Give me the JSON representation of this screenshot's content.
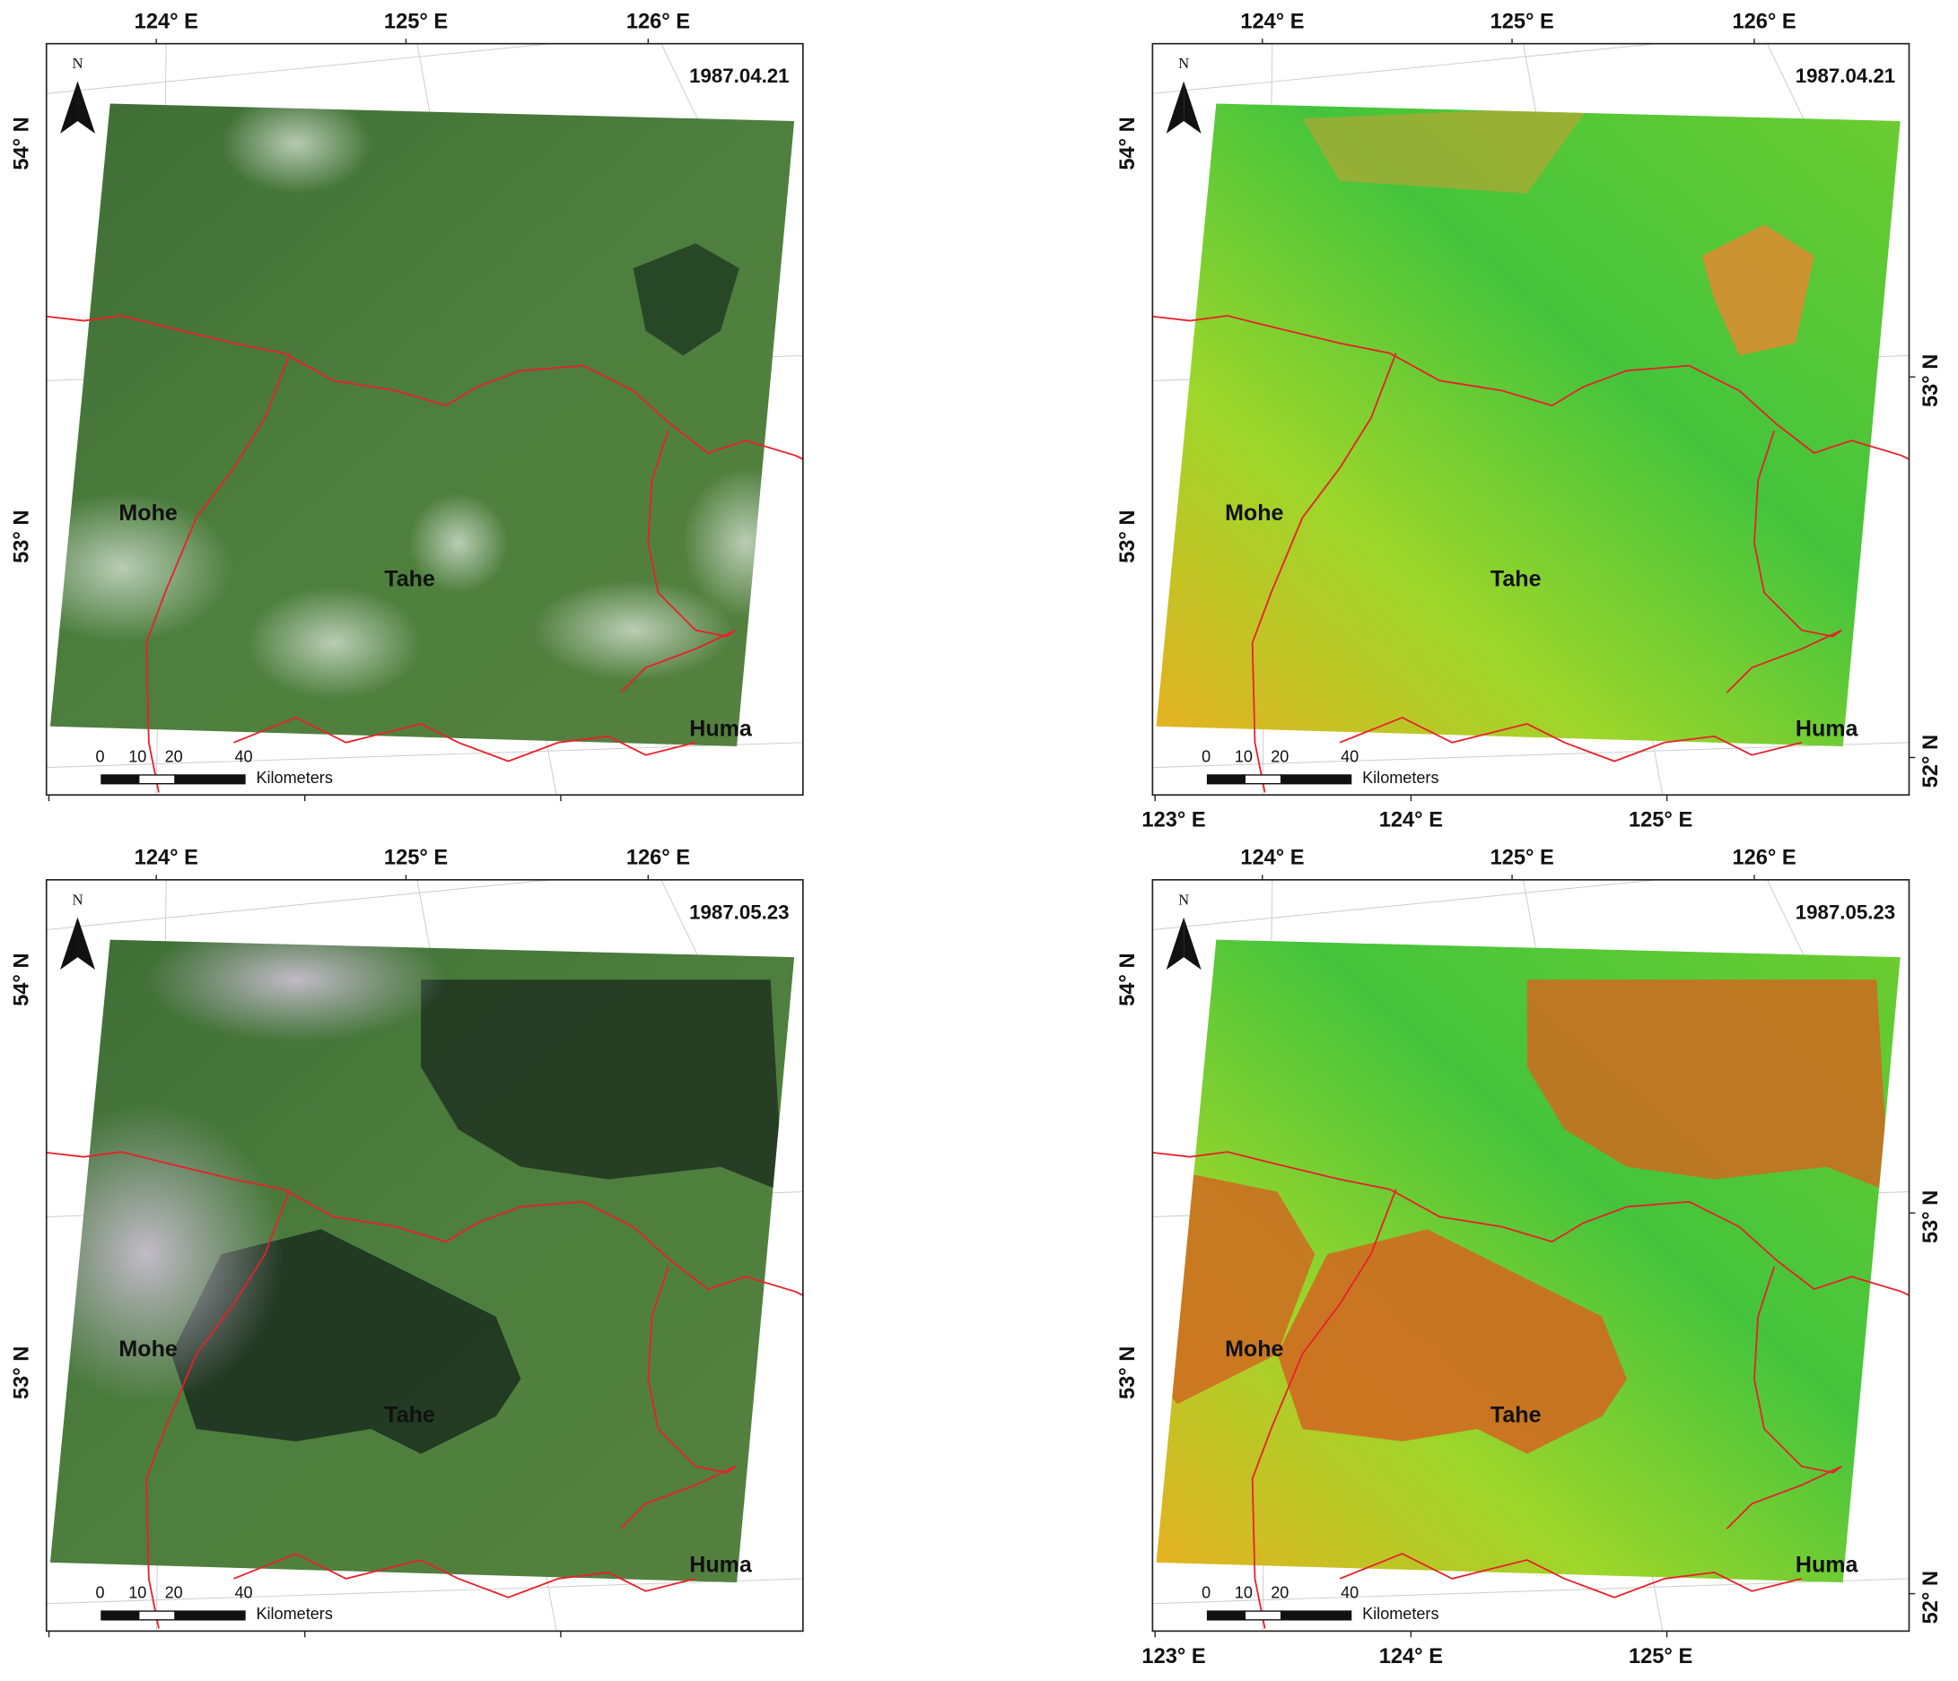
{
  "panels": [
    {
      "date": "1987.04.21",
      "north": "N",
      "top_labels": [
        "124° E",
        "125° E",
        "126° E"
      ],
      "left_labels": [
        "54° N",
        "53° N"
      ],
      "places": [
        "Mohe",
        "Tahe",
        "Huma"
      ],
      "scale_ticks": [
        "0",
        "10",
        "20",
        "40"
      ],
      "scale_unit": "Kilometers"
    },
    {
      "date": "1987.04.21",
      "north": "N",
      "top_labels": [
        "124° E",
        "125° E",
        "126° E"
      ],
      "left_labels": [
        "54° N",
        "53° N"
      ],
      "right_labels": [
        "53° N",
        "52° N"
      ],
      "bottom_labels": [
        "123° E",
        "124° E",
        "125° E"
      ],
      "places": [
        "Mohe",
        "Tahe",
        "Huma"
      ],
      "scale_ticks": [
        "0",
        "10",
        "20",
        "40"
      ],
      "scale_unit": "Kilometers"
    },
    {
      "date": "1987.05.23",
      "north": "N",
      "top_labels": [
        "124° E",
        "125° E",
        "126° E"
      ],
      "left_labels": [
        "54° N",
        "53° N"
      ],
      "places": [
        "Mohe",
        "Tahe",
        "Huma"
      ],
      "scale_ticks": [
        "0",
        "10",
        "20",
        "40"
      ],
      "scale_unit": "Kilometers"
    },
    {
      "date": "1987.05.23",
      "north": "N",
      "top_labels": [
        "124° E",
        "125° E",
        "126° E"
      ],
      "left_labels": [
        "54° N",
        "53° N"
      ],
      "right_labels": [
        "53° N",
        "52° N"
      ],
      "bottom_labels": [
        "123° E",
        "124° E",
        "125° E"
      ],
      "places": [
        "Mohe",
        "Tahe",
        "Huma"
      ],
      "scale_ticks": [
        "0",
        "10",
        "20",
        "40"
      ],
      "scale_unit": "Kilometers"
    }
  ]
}
